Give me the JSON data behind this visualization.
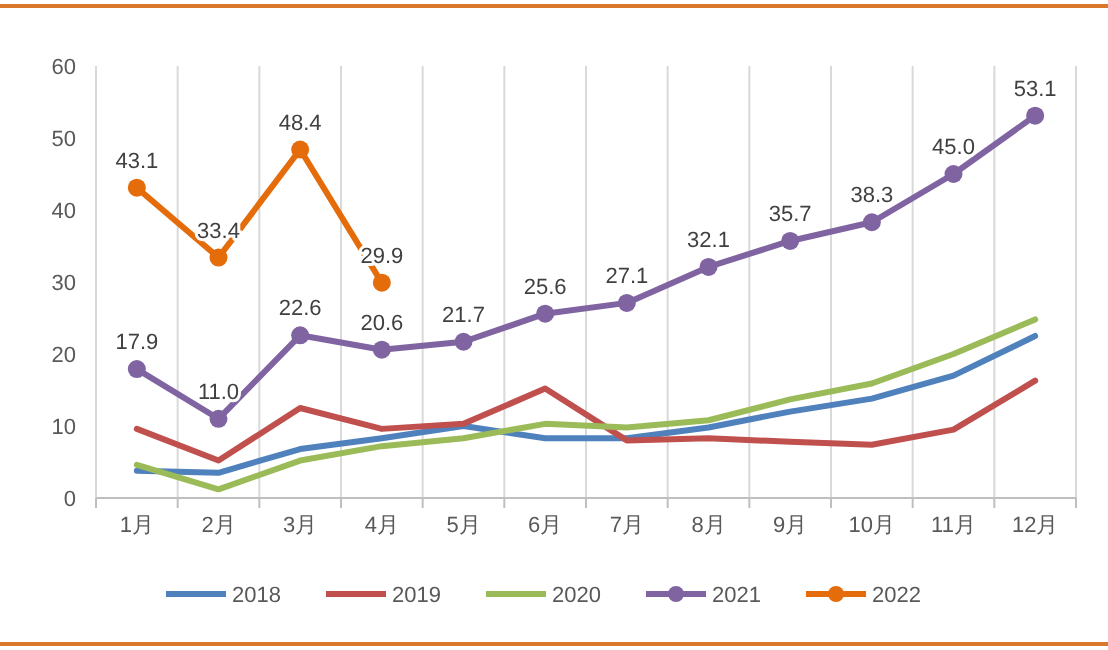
{
  "chart_data": {
    "type": "line",
    "categories": [
      "1月",
      "2月",
      "3月",
      "4月",
      "5月",
      "6月",
      "7月",
      "8月",
      "9月",
      "10月",
      "11月",
      "12月"
    ],
    "series": [
      {
        "name": "2018",
        "color": "#4f81bd",
        "marker": "none",
        "values": [
          3.8,
          3.5,
          6.8,
          8.3,
          10.0,
          8.3,
          8.3,
          9.8,
          12.0,
          13.8,
          17.0,
          22.5
        ]
      },
      {
        "name": "2019",
        "color": "#c0504d",
        "marker": "none",
        "values": [
          9.6,
          5.2,
          12.5,
          9.6,
          10.3,
          15.2,
          8.0,
          8.3,
          7.8,
          7.4,
          9.5,
          16.3
        ]
      },
      {
        "name": "2020",
        "color": "#9bbb59",
        "marker": "none",
        "values": [
          4.6,
          1.2,
          5.2,
          7.2,
          8.3,
          10.3,
          9.8,
          10.8,
          13.7,
          15.9,
          20.0,
          24.8
        ]
      },
      {
        "name": "2021",
        "color": "#8064a2",
        "marker": "circle",
        "values": [
          17.9,
          11.0,
          22.6,
          20.6,
          21.7,
          25.6,
          27.1,
          32.1,
          35.7,
          38.3,
          45.0,
          53.1
        ],
        "value_labels": [
          "17.9",
          "11.0",
          "22.6",
          "20.6",
          "21.7",
          "25.6",
          "27.1",
          "32.1",
          "35.7",
          "38.3",
          "45.0",
          "53.1"
        ]
      },
      {
        "name": "2022",
        "color": "#e46c0a",
        "marker": "circle",
        "values": [
          43.1,
          33.4,
          48.4,
          29.9,
          null,
          null,
          null,
          null,
          null,
          null,
          null,
          null
        ],
        "value_labels": [
          "43.1",
          "33.4",
          "48.4",
          "29.9",
          null,
          null,
          null,
          null,
          null,
          null,
          null,
          null
        ]
      }
    ],
    "ylim": [
      0,
      60
    ],
    "yticks": [
      0,
      10,
      20,
      30,
      40,
      50,
      60
    ],
    "grid": "x",
    "legend": "bottom"
  }
}
